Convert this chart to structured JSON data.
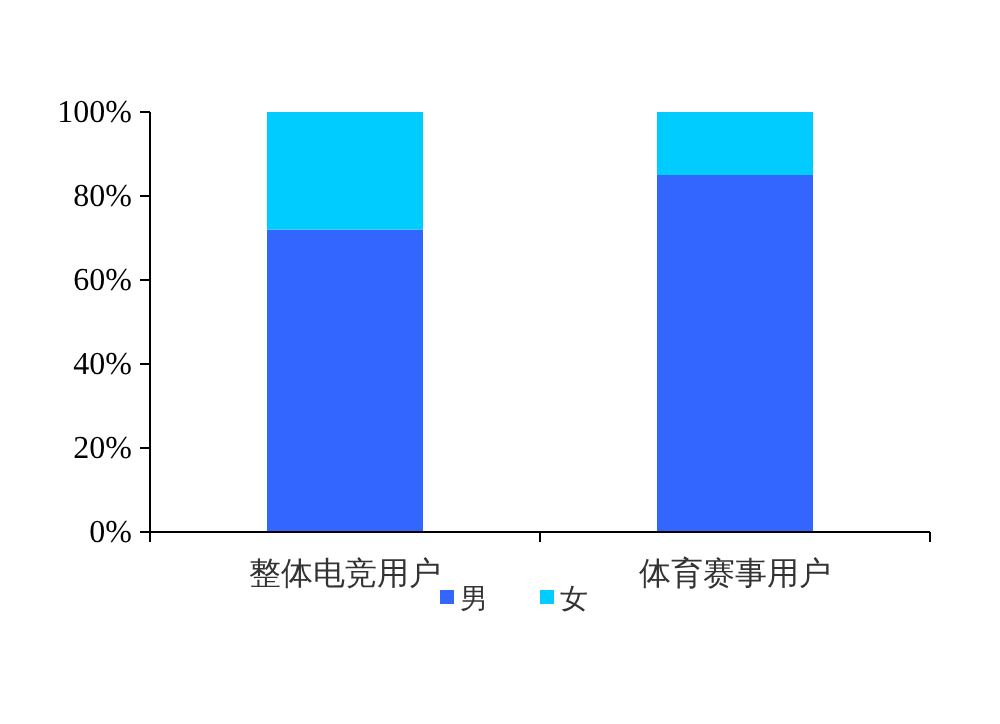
{
  "chart_data": {
    "type": "bar",
    "stacked": true,
    "categories": [
      "整体电竞用户",
      "体育赛事用户"
    ],
    "series": [
      {
        "name": "男",
        "color": "#3366ff",
        "values": [
          72,
          85
        ]
      },
      {
        "name": "女",
        "color": "#00ccff",
        "values": [
          28,
          15
        ]
      }
    ],
    "ylim": [
      0,
      100
    ],
    "yticks": [
      {
        "value": 0,
        "label": "0%"
      },
      {
        "value": 20,
        "label": "20%"
      },
      {
        "value": 40,
        "label": "40%"
      },
      {
        "value": 60,
        "label": "60%"
      },
      {
        "value": 80,
        "label": "80%"
      },
      {
        "value": 100,
        "label": "100%"
      }
    ],
    "legend": "bottom",
    "grid": false
  }
}
